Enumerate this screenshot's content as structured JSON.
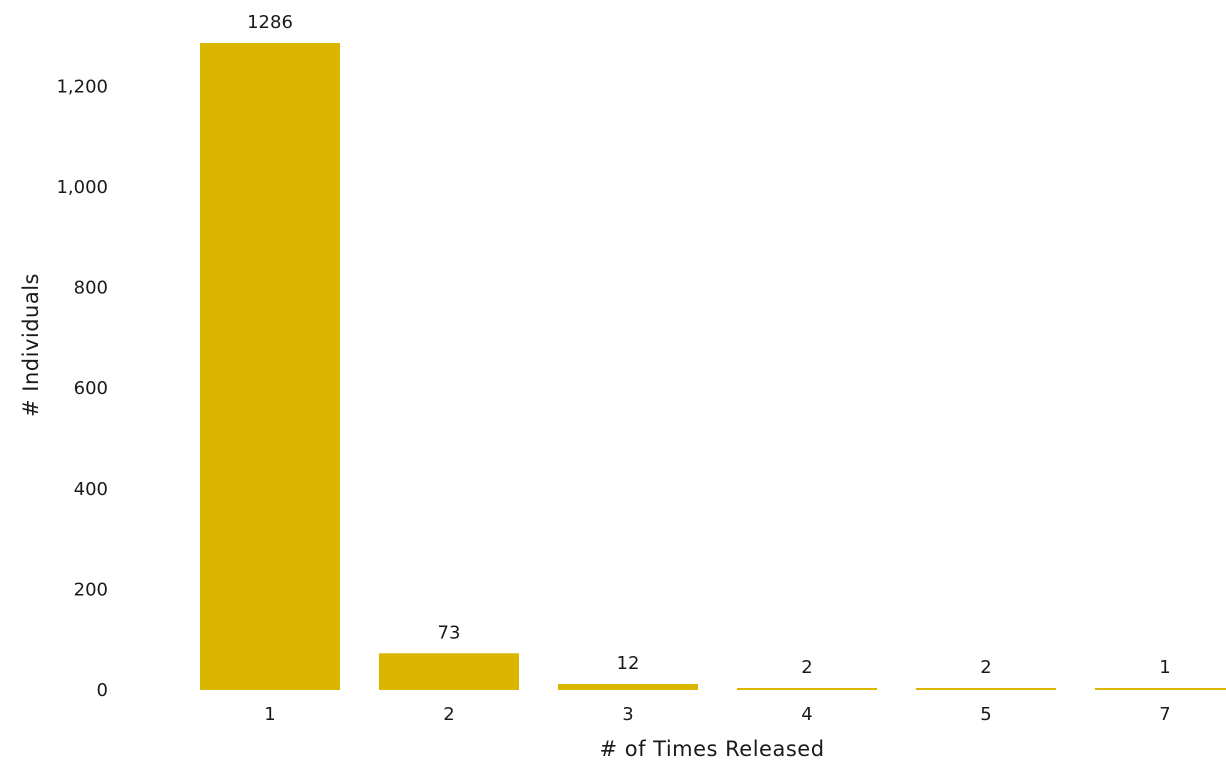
{
  "chart_data": {
    "type": "bar",
    "title": "",
    "xlabel": "# of Times Released",
    "ylabel": "# Individuals",
    "categories": [
      "1",
      "2",
      "3",
      "4",
      "5",
      "7"
    ],
    "values": [
      1286,
      73,
      12,
      2,
      2,
      1
    ],
    "data_labels": [
      "1286",
      "73",
      "12",
      "2",
      "2",
      "1"
    ],
    "yticks": [
      0,
      200,
      400,
      600,
      800,
      1000,
      1200
    ],
    "ytick_labels": [
      "0",
      "200",
      "400",
      "600",
      "800",
      "1,000",
      "1,200"
    ],
    "ylim": [
      0,
      1286
    ],
    "grid": false,
    "legend": "none",
    "bar_color": "#DAB600"
  }
}
